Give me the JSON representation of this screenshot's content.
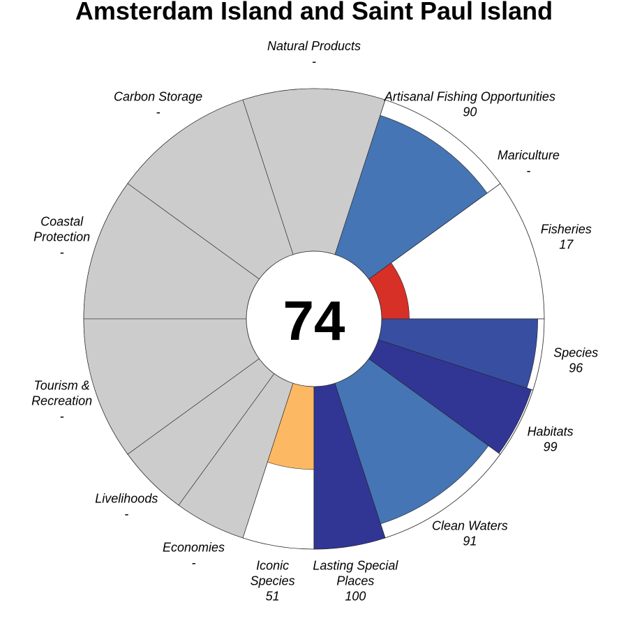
{
  "chart_data": {
    "type": "flower-polar-bar",
    "title": "Amsterdam Island and Saint Paul Island",
    "overall_score": "74",
    "score_max": 100,
    "no_data_color": "#cccccc",
    "goals": [
      {
        "label": "Fisheries",
        "score": 17,
        "score_label": "17",
        "color": "#d73027",
        "weight": 1
      },
      {
        "label": "Mariculture",
        "score": null,
        "score_label": "-",
        "color": "#cccccc",
        "weight": 0
      },
      {
        "label": "Artisanal Fishing Opportunities",
        "score": 90,
        "score_label": "90",
        "color": "#4575b4",
        "weight": 1
      },
      {
        "label": "Natural Products",
        "score": null,
        "score_label": "-",
        "color": "#cccccc",
        "weight": 1
      },
      {
        "label": "Carbon Storage",
        "score": null,
        "score_label": "-",
        "color": "#cccccc",
        "weight": 1
      },
      {
        "label": "Coastal\nProtection",
        "score": null,
        "score_label": "-",
        "color": "#cccccc",
        "weight": 1
      },
      {
        "label": "Tourism &\nRecreation",
        "score": null,
        "score_label": "-",
        "color": "#cccccc",
        "weight": 1
      },
      {
        "label": "Livelihoods",
        "score": null,
        "score_label": "-",
        "color": "#cccccc",
        "weight": 0.5
      },
      {
        "label": "Economies",
        "score": null,
        "score_label": "-",
        "color": "#cccccc",
        "weight": 0.5
      },
      {
        "label": "Iconic\nSpecies",
        "score": 51,
        "score_label": "51",
        "color": "#fdb863",
        "weight": 0.5
      },
      {
        "label": "Lasting Special\nPlaces",
        "score": 100,
        "score_label": "100",
        "color": "#313695",
        "weight": 0.5
      },
      {
        "label": "Clean Waters",
        "score": 91,
        "score_label": "91",
        "color": "#4575b4",
        "weight": 1
      },
      {
        "label": "Habitats",
        "score": 99,
        "score_label": "99",
        "color": "#313695",
        "weight": 0.5
      },
      {
        "label": "Species",
        "score": 96,
        "score_label": "96",
        "color": "#384ea0",
        "weight": 0.5
      }
    ]
  }
}
